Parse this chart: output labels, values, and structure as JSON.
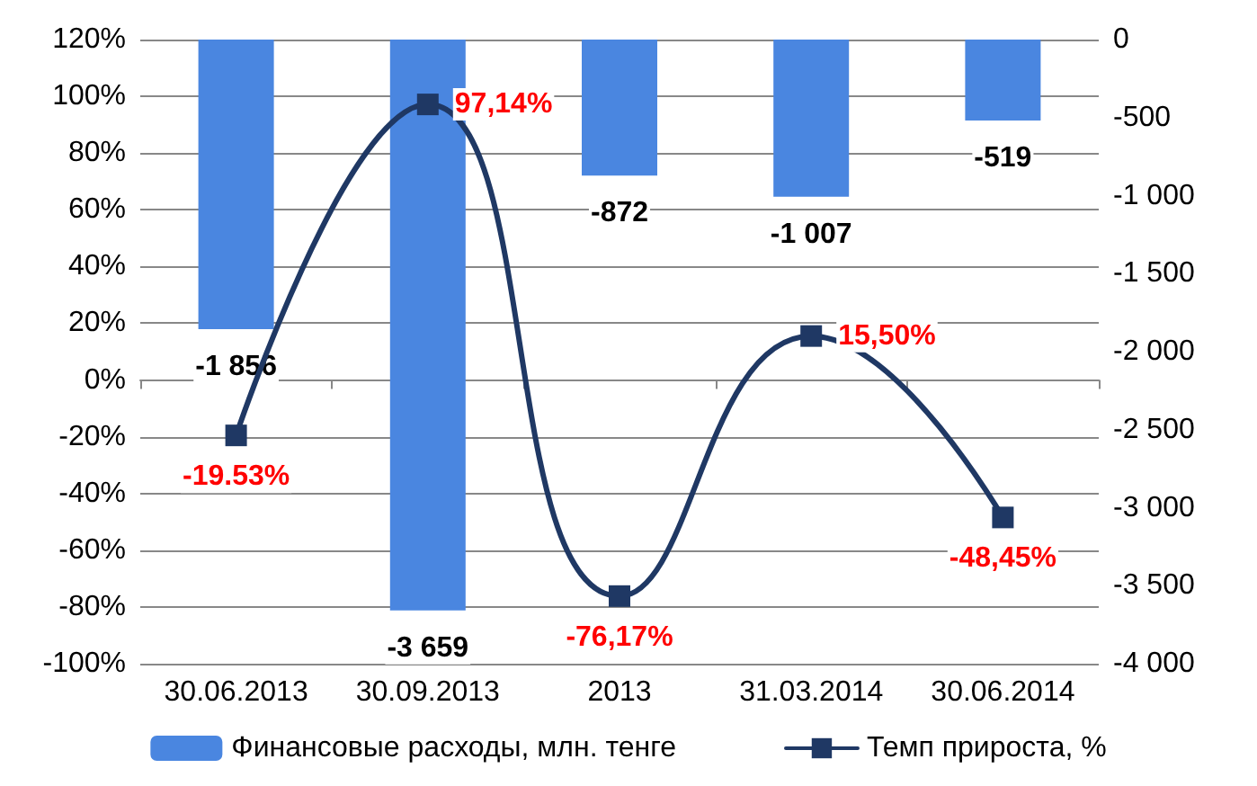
{
  "chart_data": {
    "type": "bar",
    "categories": [
      "30.06.2013",
      "30.09.2013",
      "2013",
      "31.03.2014",
      "30.06.2014"
    ],
    "series": [
      {
        "name": "Финансовые расходы, млн. тенге",
        "axis": "y2",
        "color": "#4a86e0",
        "values": [
          -1856,
          -3659,
          -872,
          -1007,
          -519
        ],
        "value_labels": [
          "-1 856",
          "-3 659",
          "-872",
          "-1 007",
          "-519"
        ]
      },
      {
        "name": "Темп прироста, %",
        "type": "line",
        "color": "#1f3864",
        "values": [
          -19.53,
          97.14,
          -76.17,
          15.5,
          -48.45
        ],
        "value_labels": [
          "-19.53%",
          "97,14%",
          "-76,17%",
          "15,50%",
          "-48,45%"
        ]
      }
    ],
    "ylim": [
      -100,
      120
    ],
    "yticks": [
      {
        "value": -100,
        "label": "-100%"
      },
      {
        "value": -80,
        "label": "-80%"
      },
      {
        "value": -60,
        "label": "-60%"
      },
      {
        "value": -40,
        "label": "-40%"
      },
      {
        "value": -20,
        "label": "-20%"
      },
      {
        "value": 0,
        "label": "0%"
      },
      {
        "value": 20,
        "label": "20%"
      },
      {
        "value": 40,
        "label": "40%"
      },
      {
        "value": 60,
        "label": "60%"
      },
      {
        "value": 80,
        "label": "80%"
      },
      {
        "value": 100,
        "label": "100%"
      },
      {
        "value": 120,
        "label": "120%"
      }
    ],
    "y2lim": [
      -4000,
      0
    ],
    "y2ticks": [
      {
        "value": -4000,
        "label": "-4 000"
      },
      {
        "value": -3500,
        "label": "-3 500"
      },
      {
        "value": -3000,
        "label": "-3 000"
      },
      {
        "value": -2500,
        "label": "-2 500"
      },
      {
        "value": -2000,
        "label": "-2 000"
      },
      {
        "value": -1500,
        "label": "-1 500"
      },
      {
        "value": -1000,
        "label": "-1 000"
      },
      {
        "value": -500,
        "label": "-500"
      },
      0
    ],
    "grid": "y",
    "legend": "bottom",
    "marker": "square",
    "line_style": "solid"
  }
}
